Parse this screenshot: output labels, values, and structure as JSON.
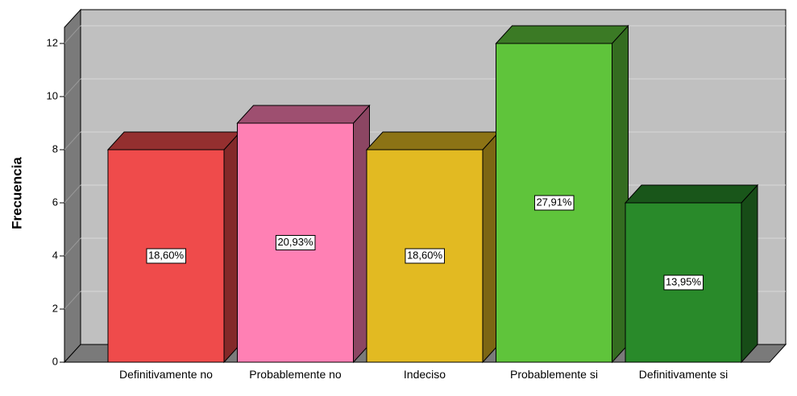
{
  "chart_data": {
    "type": "bar3d",
    "y_label": "Frecuencia",
    "categories": [
      "Definitivamente no",
      "Probablemente no",
      "Indeciso",
      "Probablemente si",
      "Definitivamente si"
    ],
    "values": [
      8,
      9,
      8,
      12,
      6
    ],
    "bar_labels": [
      "18,60%",
      "20,93%",
      "18,60%",
      "27,91%",
      "13,95%"
    ],
    "colors": [
      "#ef4b4b",
      "#ff80b4",
      "#e2ba22",
      "#5fc43b",
      "#298a2a"
    ],
    "ylim": [
      0,
      12
    ],
    "yticks": [
      0,
      2,
      4,
      6,
      8,
      10,
      12
    ],
    "grid": true
  }
}
